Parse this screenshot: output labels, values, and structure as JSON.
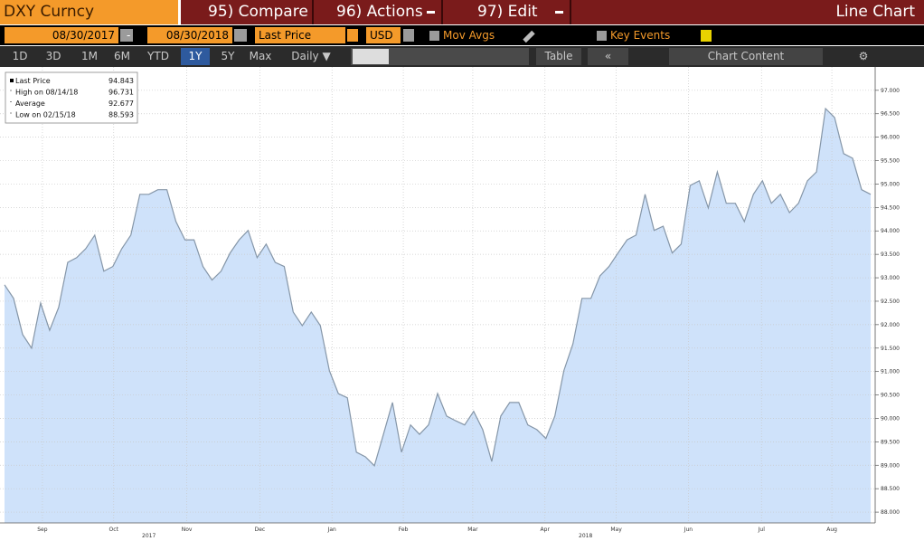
{
  "header": {
    "security": "DXY Curncy",
    "menu": [
      "95) Compare",
      "96) Actions",
      "97) Edit"
    ],
    "view": "Line Chart"
  },
  "toolbar": {
    "start_date": "08/30/2017",
    "separator": "-",
    "end_date": "08/30/2018",
    "field": "Last Price",
    "currency": "USD",
    "mov_avgs": "Mov Avgs",
    "key_events": "Key Events",
    "periods": [
      "1D",
      "3D",
      "1M",
      "6M",
      "YTD",
      "1Y",
      "5Y",
      "Max"
    ],
    "frequency": "Daily",
    "table": "Table",
    "chart_content": "Chart Content"
  },
  "chart_data": {
    "type": "line",
    "series": [
      {
        "name": "Last Price",
        "color": "#8596a8",
        "fill": "#cfe2fa",
        "values": [
          92.85,
          92.56,
          91.79,
          91.5,
          92.46,
          91.88,
          92.37,
          93.33,
          93.43,
          93.62,
          93.91,
          93.14,
          93.24,
          93.62,
          93.91,
          94.78,
          94.78,
          94.88,
          94.88,
          94.2,
          93.81,
          93.81,
          93.24,
          92.95,
          93.14,
          93.53,
          93.81,
          94.01,
          93.43,
          93.72,
          93.33,
          93.24,
          92.27,
          91.98,
          92.27,
          91.98,
          91.02,
          90.53,
          90.44,
          89.28,
          89.18,
          88.99,
          89.66,
          90.34,
          89.28,
          89.86,
          89.66,
          89.86,
          90.53,
          90.05,
          89.95,
          89.86,
          90.15,
          89.76,
          89.08,
          90.05,
          90.34,
          90.34,
          89.86,
          89.76,
          89.57,
          90.05,
          91.02,
          91.59,
          92.56,
          92.56,
          93.04,
          93.24,
          93.53,
          93.81,
          93.91,
          94.78,
          94.01,
          94.1,
          93.53,
          93.72,
          94.97,
          95.07,
          94.49,
          95.26,
          94.59,
          94.59,
          94.2,
          94.78,
          95.07,
          94.59,
          94.78,
          94.39,
          94.59,
          95.07,
          95.26,
          96.61,
          96.42,
          95.65,
          95.55,
          94.88,
          94.78
        ]
      }
    ],
    "xlim": [
      0,
      96
    ],
    "xticks": [
      {
        "value": 4.2,
        "label": "Sep"
      },
      {
        "value": 12.1,
        "label": "Oct"
      },
      {
        "value": 20.2,
        "label": "Nov"
      },
      {
        "value": 28.3,
        "label": "Dec"
      },
      {
        "value": 36.3,
        "label": "Jan"
      },
      {
        "value": 44.2,
        "label": "Feb"
      },
      {
        "value": 51.9,
        "label": "Mar"
      },
      {
        "value": 59.9,
        "label": "Apr"
      },
      {
        "value": 67.8,
        "label": "May"
      },
      {
        "value": 75.8,
        "label": "Jun"
      },
      {
        "value": 83.9,
        "label": "Jul"
      },
      {
        "value": 91.7,
        "label": "Aug"
      }
    ],
    "year_labels": [
      {
        "value": 16,
        "label": "2017"
      },
      {
        "value": 64.4,
        "label": "2018"
      }
    ],
    "ylim": [
      87.77,
      97.46
    ],
    "yticks": [
      {
        "value": 88,
        "label": "88.000"
      },
      {
        "value": 88.5,
        "label": "88.500"
      },
      {
        "value": 89,
        "label": "89.000"
      },
      {
        "value": 89.5,
        "label": "89.500"
      },
      {
        "value": 90,
        "label": "90.000"
      },
      {
        "value": 90.5,
        "label": "90.500"
      },
      {
        "value": 91,
        "label": "91.000"
      },
      {
        "value": 91.5,
        "label": "91.500"
      },
      {
        "value": 92,
        "label": "92.000"
      },
      {
        "value": 92.5,
        "label": "92.500"
      },
      {
        "value": 93,
        "label": "93.000"
      },
      {
        "value": 93.5,
        "label": "93.500"
      },
      {
        "value": 94,
        "label": "94.000"
      },
      {
        "value": 94.5,
        "label": "94.500"
      },
      {
        "value": 95,
        "label": "95.000"
      },
      {
        "value": 95.5,
        "label": "95.500"
      },
      {
        "value": 96,
        "label": "96.000"
      },
      {
        "value": 96.5,
        "label": "96.500"
      },
      {
        "value": 97,
        "label": "97.000"
      }
    ],
    "grid": true,
    "legend": [
      {
        "label": "Last Price",
        "value": 94.843
      },
      {
        "label": "High on 08/14/18",
        "value": 96.731
      },
      {
        "label": "Average",
        "value": 92.677
      },
      {
        "label": "Low on 02/15/18",
        "value": 88.593
      }
    ]
  }
}
